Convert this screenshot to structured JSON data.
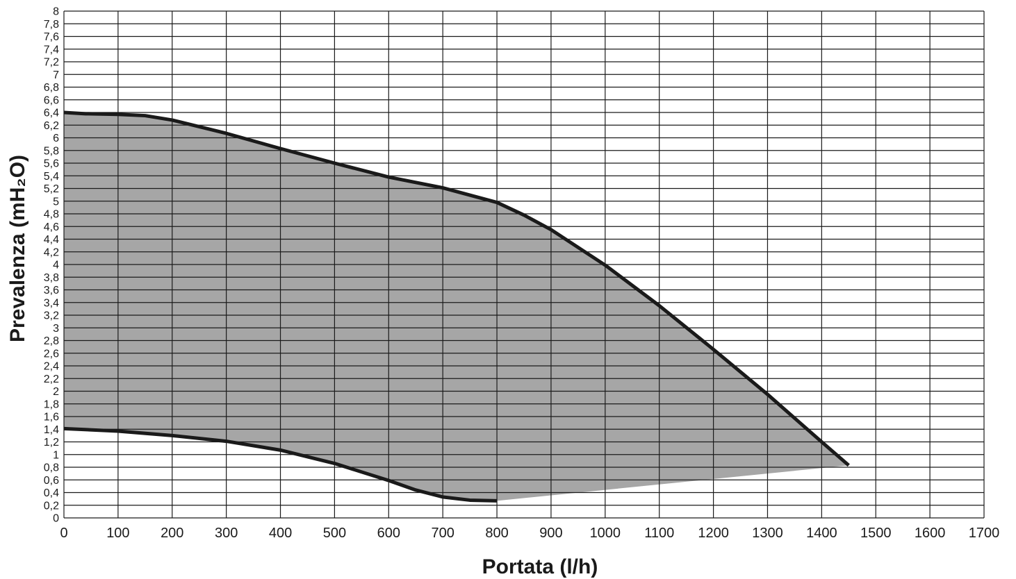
{
  "chart_data": {
    "type": "area",
    "xlabel": "Portata (l/h)",
    "ylabel": "Prevalenza (mH₂O)",
    "xlim": [
      0,
      1700
    ],
    "ylim": [
      0,
      8
    ],
    "x_ticks": [
      "0",
      "100",
      "200",
      "300",
      "400",
      "500",
      "600",
      "700",
      "800",
      "900",
      "1000",
      "1100",
      "1200",
      "1300",
      "1400",
      "1500",
      "1600",
      "1700"
    ],
    "y_ticks": [
      "0",
      "0,2",
      "0,4",
      "0,6",
      "0,8",
      "1",
      "1,2",
      "1,4",
      "1,6",
      "1,8",
      "2",
      "2,2",
      "2,4",
      "2,6",
      "2,8",
      "3",
      "3,2",
      "3,4",
      "3,6",
      "3,8",
      "4",
      "4,2",
      "4,4",
      "4,6",
      "4,8",
      "5",
      "5,2",
      "5,4",
      "5,6",
      "5,8",
      "6",
      "6,2",
      "6,4",
      "6,6",
      "6,8",
      "7",
      "7,2",
      "7,4",
      "7,6",
      "7,8",
      "8"
    ],
    "grid": true,
    "series": [
      {
        "role": "max-curve",
        "x": [
          0,
          40,
          100,
          150,
          200,
          300,
          400,
          500,
          600,
          700,
          800,
          850,
          900,
          1000,
          1100,
          1200,
          1300,
          1400,
          1450
        ],
        "y": [
          6.4,
          6.38,
          6.37,
          6.35,
          6.28,
          6.07,
          5.83,
          5.6,
          5.38,
          5.21,
          4.98,
          4.78,
          4.55,
          3.99,
          3.35,
          2.66,
          1.95,
          1.2,
          0.83
        ]
      },
      {
        "role": "min-curve",
        "x": [
          0,
          100,
          200,
          300,
          400,
          500,
          600,
          650,
          700,
          750,
          800
        ],
        "y": [
          1.41,
          1.37,
          1.3,
          1.21,
          1.07,
          0.86,
          0.59,
          0.44,
          0.33,
          0.28,
          0.27
        ]
      }
    ],
    "fill_color": "#a6a6a6",
    "line_color": "#1a1a1a",
    "grid_color": "#1a1a1a"
  }
}
